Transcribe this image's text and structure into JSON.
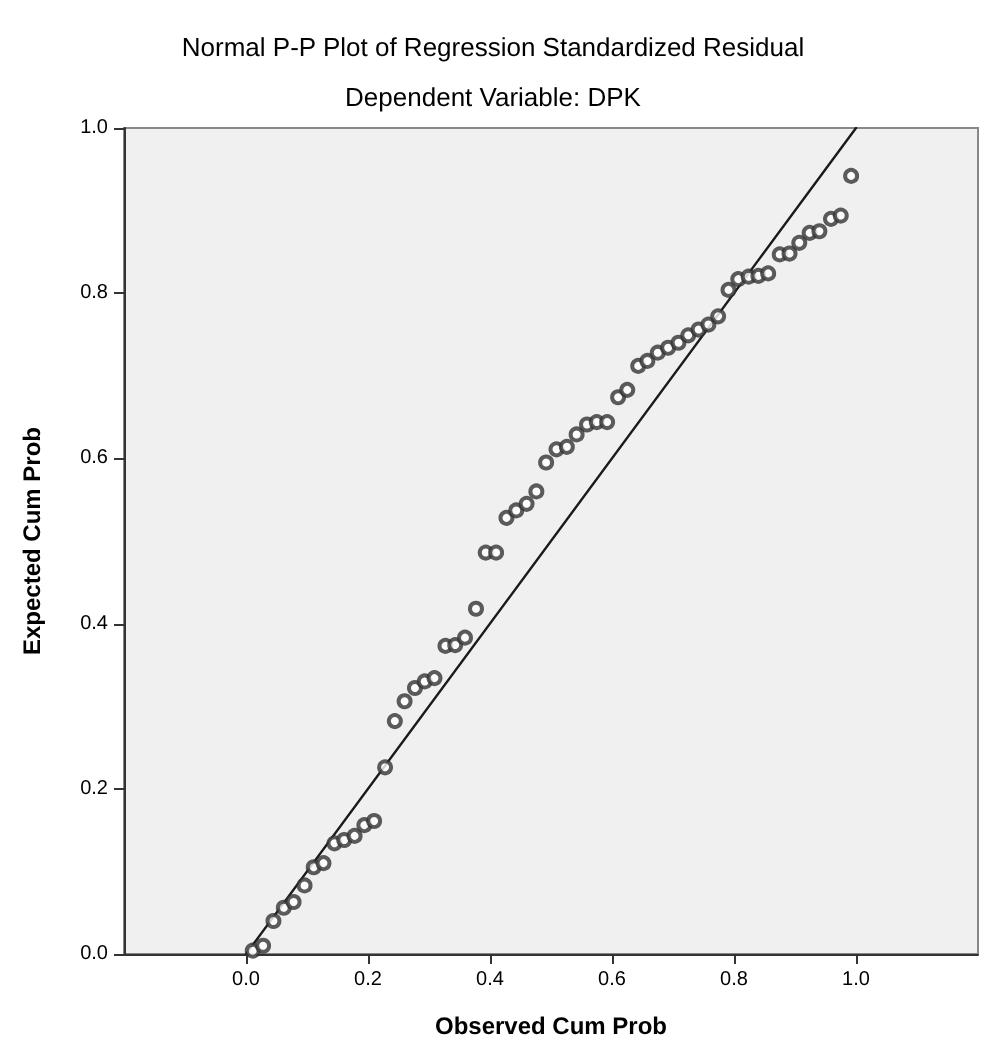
{
  "chart_data": {
    "type": "scatter",
    "title": "Normal P-P Plot of Regression Standardized Residual",
    "subtitle": "Dependent Variable: DPK",
    "xlabel": "Observed Cum Prob",
    "ylabel": "Expected Cum Prob",
    "xlim": [
      -0.2,
      1.2
    ],
    "ylim": [
      0,
      1
    ],
    "xticks": [
      {
        "value": 0,
        "label": "0.0"
      },
      0.2,
      0.4,
      0.6,
      0.8,
      {
        "value": 1,
        "label": "1.0"
      }
    ],
    "yticks": [
      {
        "value": 0,
        "label": "0.0"
      },
      0.2,
      0.4,
      0.6,
      0.8,
      {
        "value": 1,
        "label": "1.0"
      }
    ],
    "grid": false,
    "marker": "circle",
    "series": [
      {
        "color": "#333333",
        "x": [
          0.011,
          0.028,
          0.045,
          0.062,
          0.078,
          0.096,
          0.111,
          0.127,
          0.145,
          0.161,
          0.178,
          0.194,
          0.21,
          0.228,
          0.244,
          0.26,
          0.277,
          0.293,
          0.309,
          0.327,
          0.343,
          0.359,
          0.377,
          0.393,
          0.41,
          0.427,
          0.443,
          0.46,
          0.476,
          0.492,
          0.509,
          0.526,
          0.542,
          0.559,
          0.575,
          0.592,
          0.61,
          0.625,
          0.643,
          0.658,
          0.675,
          0.692,
          0.709,
          0.725,
          0.742,
          0.758,
          0.774,
          0.791,
          0.807,
          0.824,
          0.84,
          0.856,
          0.875,
          0.891,
          0.907,
          0.924,
          0.94,
          0.959,
          0.975,
          0.992
        ],
        "values": [
          0.004,
          0.01,
          0.04,
          0.056,
          0.063,
          0.083,
          0.105,
          0.11,
          0.134,
          0.138,
          0.143,
          0.156,
          0.161,
          0.226,
          0.282,
          0.306,
          0.322,
          0.33,
          0.334,
          0.373,
          0.374,
          0.383,
          0.418,
          0.486,
          0.486,
          0.528,
          0.537,
          0.545,
          0.56,
          0.595,
          0.611,
          0.614,
          0.629,
          0.641,
          0.644,
          0.644,
          0.674,
          0.683,
          0.712,
          0.718,
          0.728,
          0.734,
          0.74,
          0.749,
          0.756,
          0.762,
          0.772,
          0.804,
          0.817,
          0.82,
          0.821,
          0.824,
          0.847,
          0.848,
          0.861,
          0.873,
          0.875,
          0.89,
          0.894,
          0.942
        ]
      },
      {
        "type": "line",
        "color": "#1a1a1a",
        "x": [
          0,
          1
        ],
        "values": [
          0,
          1
        ],
        "line_style": "solid",
        "marker": "none"
      }
    ]
  }
}
